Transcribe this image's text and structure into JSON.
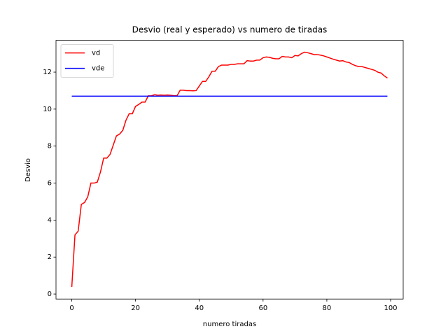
{
  "chart_data": {
    "type": "line",
    "title": "Desvio (real y esperado) vs numero de tiradas",
    "x_label": "numero tiradas",
    "y_label": "Desvio",
    "x": [
      0,
      1,
      2,
      3,
      4,
      5,
      6,
      7,
      8,
      9,
      10,
      11,
      12,
      13,
      14,
      15,
      16,
      17,
      18,
      19,
      20,
      21,
      22,
      23,
      24,
      25,
      26,
      27,
      28,
      29,
      30,
      31,
      32,
      33,
      34,
      35,
      36,
      37,
      38,
      39,
      40,
      41,
      42,
      43,
      44,
      45,
      46,
      47,
      48,
      49,
      50,
      51,
      52,
      53,
      54,
      55,
      56,
      57,
      58,
      59,
      60,
      61,
      62,
      63,
      64,
      65,
      66,
      67,
      68,
      69,
      70,
      71,
      72,
      73,
      74,
      75,
      76,
      77,
      78,
      79,
      80,
      81,
      82,
      83,
      84,
      85,
      86,
      87,
      88,
      89,
      90,
      91,
      92,
      93,
      94,
      95,
      96,
      97,
      98,
      99
    ],
    "series": [
      {
        "name": "vd",
        "color": "#ff0000",
        "values": [
          0.38,
          3.2,
          3.4,
          4.85,
          4.95,
          5.25,
          6.0,
          6.0,
          6.05,
          6.6,
          7.35,
          7.35,
          7.55,
          8.05,
          8.55,
          8.65,
          8.85,
          9.4,
          9.75,
          9.75,
          10.15,
          10.25,
          10.38,
          10.38,
          10.72,
          10.72,
          10.78,
          10.75,
          10.76,
          10.75,
          10.76,
          10.75,
          10.73,
          10.72,
          11.02,
          11.02,
          11.0,
          11.0,
          10.99,
          11.0,
          11.25,
          11.5,
          11.5,
          11.75,
          12.05,
          12.05,
          12.3,
          12.38,
          12.38,
          12.38,
          12.42,
          12.42,
          12.45,
          12.45,
          12.45,
          12.62,
          12.6,
          12.6,
          12.65,
          12.65,
          12.78,
          12.82,
          12.8,
          12.75,
          12.72,
          12.72,
          12.85,
          12.82,
          12.82,
          12.78,
          12.9,
          12.88,
          13.0,
          13.08,
          13.05,
          13.0,
          12.95,
          12.95,
          12.92,
          12.88,
          12.82,
          12.76,
          12.7,
          12.65,
          12.6,
          12.62,
          12.55,
          12.52,
          12.42,
          12.35,
          12.3,
          12.3,
          12.25,
          12.2,
          12.15,
          12.1,
          12.0,
          11.95,
          11.8,
          11.68
        ]
      },
      {
        "name": "vde",
        "color": "#0000ff",
        "values": [
          10.7,
          10.7,
          10.7,
          10.7,
          10.7,
          10.7,
          10.7,
          10.7,
          10.7,
          10.7,
          10.7,
          10.7,
          10.7,
          10.7,
          10.7,
          10.7,
          10.7,
          10.7,
          10.7,
          10.7,
          10.7,
          10.7,
          10.7,
          10.7,
          10.7,
          10.7,
          10.7,
          10.7,
          10.7,
          10.7,
          10.7,
          10.7,
          10.7,
          10.7,
          10.7,
          10.7,
          10.7,
          10.7,
          10.7,
          10.7,
          10.7,
          10.7,
          10.7,
          10.7,
          10.7,
          10.7,
          10.7,
          10.7,
          10.7,
          10.7,
          10.7,
          10.7,
          10.7,
          10.7,
          10.7,
          10.7,
          10.7,
          10.7,
          10.7,
          10.7,
          10.7,
          10.7,
          10.7,
          10.7,
          10.7,
          10.7,
          10.7,
          10.7,
          10.7,
          10.7,
          10.7,
          10.7,
          10.7,
          10.7,
          10.7,
          10.7,
          10.7,
          10.7,
          10.7,
          10.7,
          10.7,
          10.7,
          10.7,
          10.7,
          10.7,
          10.7,
          10.7,
          10.7,
          10.7,
          10.7,
          10.7,
          10.7,
          10.7,
          10.7,
          10.7,
          10.7,
          10.7,
          10.7,
          10.7,
          10.7
        ]
      }
    ],
    "xlim": [
      -4.95,
      103.95
    ],
    "xticks": [
      0,
      20,
      40,
      60,
      80,
      100
    ],
    "ylim": [
      -0.27,
      13.72
    ],
    "yticks": [
      0,
      2,
      4,
      6,
      8,
      10,
      12
    ],
    "legend": "upper left"
  }
}
